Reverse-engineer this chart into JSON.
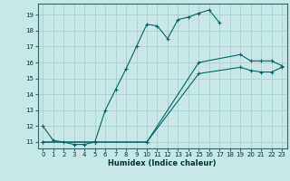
{
  "xlabel": "Humidex (Indice chaleur)",
  "bg_color": "#c8e8e8",
  "grid_color": "#a8d0d0",
  "line_color": "#006666",
  "xlim": [
    -0.5,
    23.5
  ],
  "ylim": [
    10.6,
    19.7
  ],
  "yticks": [
    11,
    12,
    13,
    14,
    15,
    16,
    17,
    18,
    19
  ],
  "xticks": [
    0,
    1,
    2,
    3,
    4,
    5,
    6,
    7,
    8,
    9,
    10,
    11,
    12,
    13,
    14,
    15,
    16,
    17,
    18,
    19,
    20,
    21,
    22,
    23
  ],
  "series": [
    {
      "x": [
        0,
        1,
        2,
        3,
        4,
        5,
        6,
        7,
        8,
        9,
        10,
        11,
        12,
        13,
        14,
        15,
        16,
        17
      ],
      "y": [
        12,
        11.1,
        11.0,
        10.85,
        10.85,
        11.0,
        13.0,
        14.3,
        15.6,
        17.0,
        18.4,
        18.3,
        17.5,
        18.7,
        18.85,
        19.1,
        19.3,
        18.5
      ]
    },
    {
      "x": [
        0,
        5,
        10,
        15,
        19,
        20,
        21,
        22,
        23
      ],
      "y": [
        11.0,
        11.0,
        11.0,
        16.0,
        16.5,
        16.1,
        16.1,
        16.1,
        15.8
      ]
    },
    {
      "x": [
        0,
        5,
        10,
        15,
        19,
        20,
        21,
        22,
        23
      ],
      "y": [
        11.0,
        11.0,
        11.0,
        15.3,
        15.7,
        15.5,
        15.4,
        15.4,
        15.7
      ]
    }
  ]
}
